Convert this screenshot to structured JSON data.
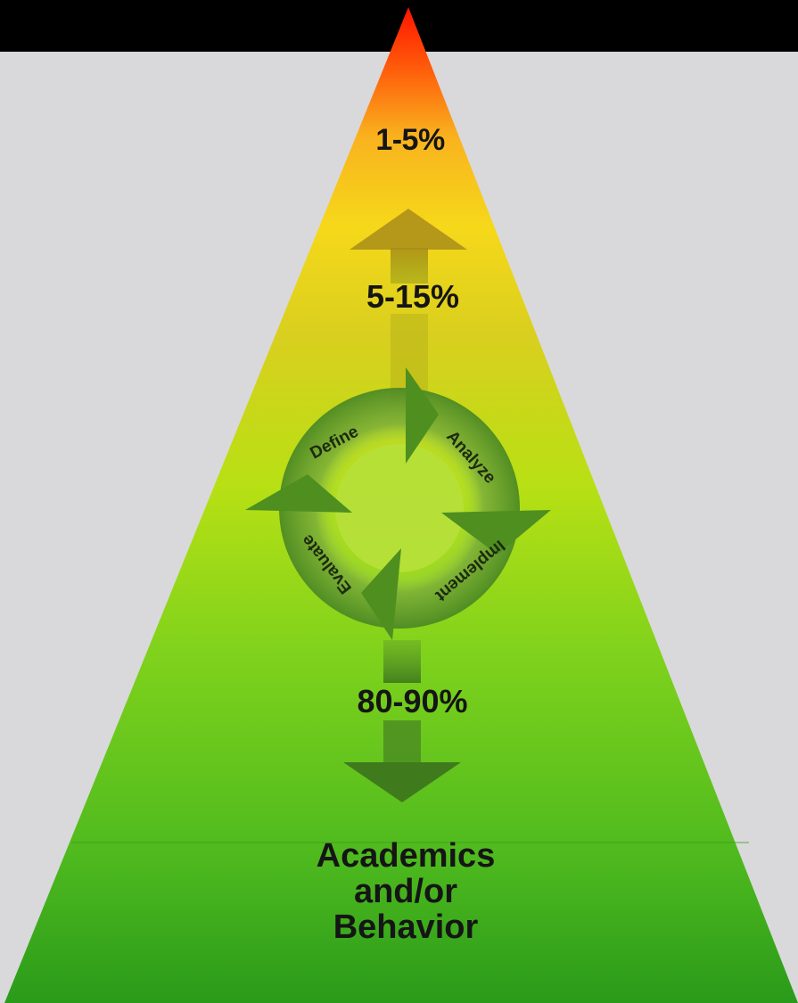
{
  "pyramid": {
    "tiers": {
      "top": "1-5%",
      "middle": "5-15%",
      "base": "80-90%"
    },
    "base_title": {
      "line1": "Academics",
      "line2": "and/or",
      "line3": "Behavior"
    },
    "colors": {
      "top": "#ff1a00",
      "upper": "#f7d21a",
      "middle": "#b4dc14",
      "base": "#2e9e1e"
    }
  },
  "cycle": {
    "steps": [
      "Define",
      "Analyze",
      "Implement",
      "Evaluate"
    ]
  }
}
